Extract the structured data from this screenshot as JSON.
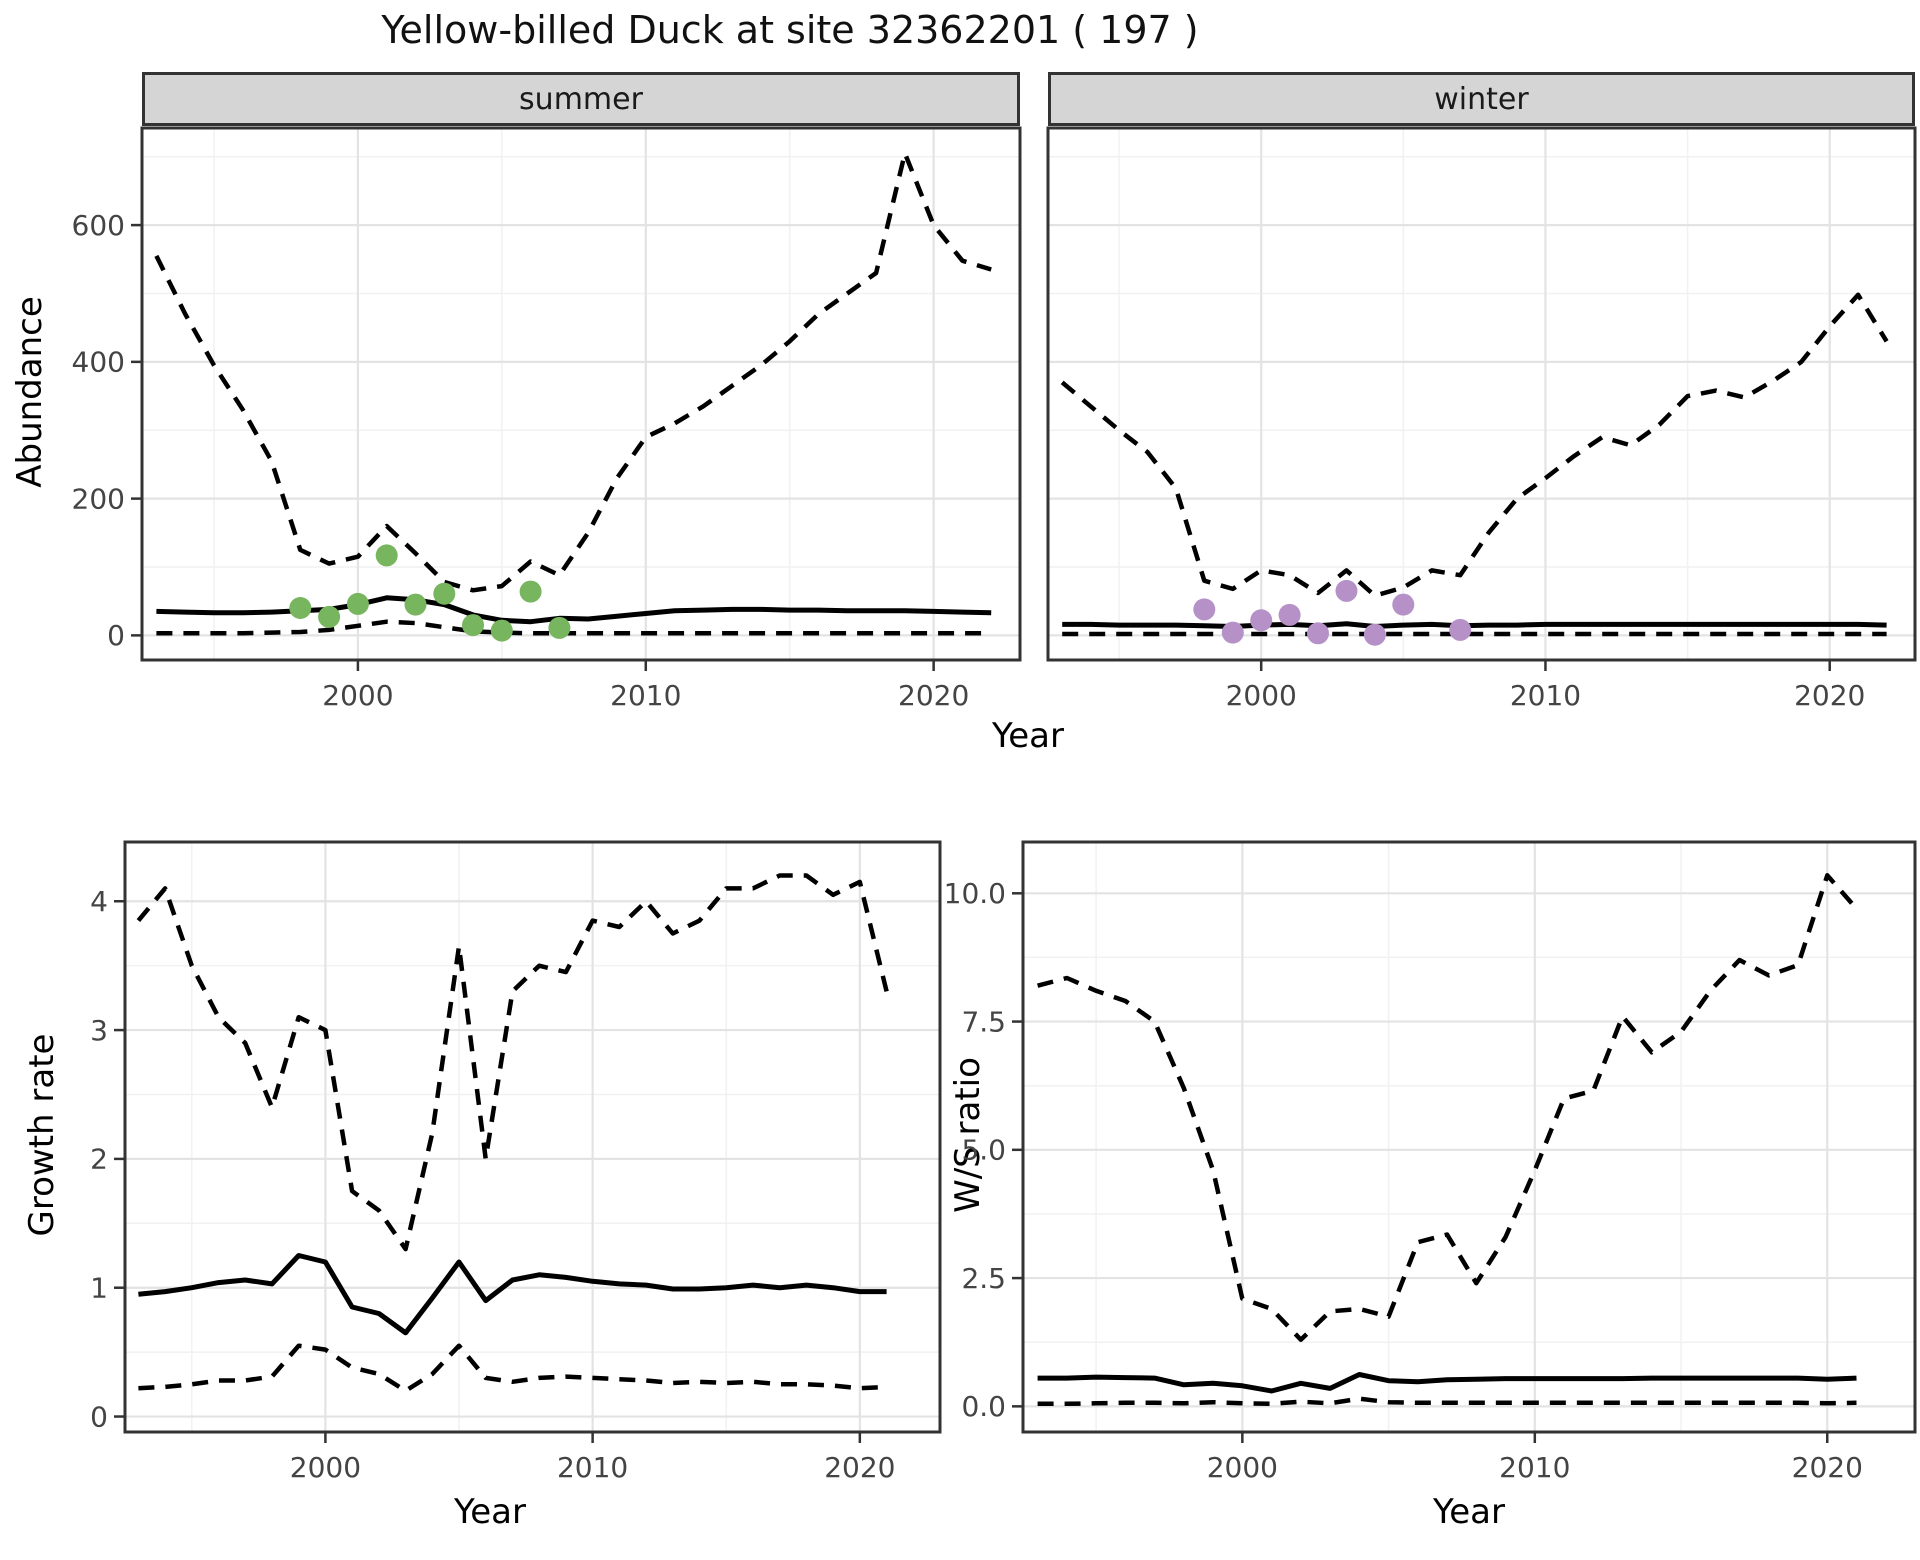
{
  "title": "Yellow-billed Duck at site 32362201 ( 197 )",
  "colors": {
    "line": "#000000",
    "summer_point": "#77b55e",
    "winter_point": "#b591c7",
    "strip_background": "#d5d5d5",
    "panel_border": "#333333",
    "grid_major": "#e3e3e3",
    "grid_minor": "#f1f1f1",
    "tick_text": "#444444"
  },
  "chart_data": [
    {
      "type": "line",
      "facet_label": "summer",
      "xlabel": "Year",
      "ylabel": "Abundance",
      "xlim": [
        1992.5,
        2023
      ],
      "ylim": [
        0,
        740
      ],
      "xticks": {
        "values": [
          2000,
          2010,
          2020
        ],
        "labels": [
          "2000",
          "2010",
          "2020"
        ]
      },
      "yticks": {
        "values": [
          0,
          200,
          400,
          600
        ],
        "labels": [
          "0",
          "200",
          "400",
          "600"
        ]
      },
      "x": [
        1993,
        1994,
        1995,
        1996,
        1997,
        1998,
        1999,
        2000,
        2001,
        2002,
        2003,
        2004,
        2005,
        2006,
        2007,
        2008,
        2009,
        2010,
        2011,
        2012,
        2013,
        2014,
        2015,
        2016,
        2017,
        2018,
        2019,
        2020,
        2021,
        2022
      ],
      "series": [
        {
          "name": "upper_95ci",
          "linetype": "dashed",
          "y": [
            555,
            470,
            395,
            330,
            255,
            125,
            105,
            115,
            160,
            120,
            78,
            66,
            72,
            108,
            88,
            150,
            230,
            290,
            310,
            335,
            365,
            395,
            430,
            470,
            500,
            530,
            705,
            600,
            548,
            535
          ]
        },
        {
          "name": "median",
          "linetype": "solid",
          "y": [
            35,
            34,
            33,
            33,
            34,
            36,
            38,
            45,
            55,
            52,
            45,
            30,
            22,
            20,
            25,
            24,
            28,
            32,
            36,
            37,
            38,
            38,
            37,
            37,
            36,
            36,
            36,
            35,
            34,
            33
          ]
        },
        {
          "name": "lower_95ci",
          "linetype": "dashed",
          "y": [
            3,
            3,
            3,
            3,
            4,
            5,
            8,
            14,
            20,
            18,
            12,
            6,
            4,
            3,
            3,
            3,
            3,
            3,
            3,
            3,
            3,
            3,
            3,
            3,
            3,
            3,
            3,
            3,
            3,
            3
          ]
        }
      ],
      "points": {
        "name": "observed_counts",
        "color": "#77b55e",
        "x": [
          1998,
          1999,
          2000,
          2001,
          2002,
          2003,
          2004,
          2005,
          2006,
          2007
        ],
        "y": [
          40,
          27,
          46,
          117,
          45,
          61,
          15,
          7,
          64,
          11
        ]
      }
    },
    {
      "type": "line",
      "facet_label": "winter",
      "xlabel": "Year",
      "ylabel": "Abundance",
      "xlim": [
        1992.5,
        2023
      ],
      "ylim": [
        0,
        740
      ],
      "xticks": {
        "values": [
          2000,
          2010,
          2020
        ],
        "labels": [
          "2000",
          "2010",
          "2020"
        ]
      },
      "yticks": {
        "values": [
          0,
          200,
          400,
          600
        ],
        "labels": [
          "0",
          "200",
          "400",
          "600"
        ]
      },
      "x": [
        1993,
        1994,
        1995,
        1996,
        1997,
        1998,
        1999,
        2000,
        2001,
        2002,
        2003,
        2004,
        2005,
        2006,
        2007,
        2008,
        2009,
        2010,
        2011,
        2012,
        2013,
        2014,
        2015,
        2016,
        2017,
        2018,
        2019,
        2020,
        2021,
        2022
      ],
      "series": [
        {
          "name": "upper_95ci",
          "linetype": "dashed",
          "y": [
            370,
            335,
            300,
            268,
            215,
            80,
            68,
            95,
            88,
            62,
            95,
            58,
            70,
            95,
            88,
            150,
            200,
            230,
            262,
            290,
            278,
            308,
            350,
            358,
            348,
            372,
            400,
            452,
            498,
            430
          ]
        },
        {
          "name": "median",
          "linetype": "solid",
          "y": [
            16,
            16,
            15,
            15,
            15,
            14,
            13,
            15,
            16,
            14,
            17,
            13,
            15,
            16,
            14,
            15,
            15,
            16,
            16,
            16,
            16,
            16,
            16,
            16,
            16,
            16,
            16,
            16,
            16,
            15
          ]
        },
        {
          "name": "lower_95ci",
          "linetype": "dashed",
          "y": [
            2,
            2,
            2,
            2,
            2,
            2,
            2,
            2,
            2,
            2,
            2,
            2,
            2,
            2,
            2,
            2,
            2,
            2,
            2,
            2,
            2,
            2,
            2,
            2,
            2,
            2,
            2,
            2,
            2,
            2
          ]
        }
      ],
      "points": {
        "name": "observed_counts",
        "color": "#b591c7",
        "x": [
          1998,
          1999,
          2000,
          2001,
          2002,
          2003,
          2004,
          2005,
          2007
        ],
        "y": [
          38,
          4,
          22,
          30,
          3,
          65,
          1,
          45,
          8
        ]
      }
    },
    {
      "type": "line",
      "facet_label": "",
      "xlabel": "Year",
      "ylabel": "Growth rate",
      "xlim": [
        1992.5,
        2023
      ],
      "ylim": [
        0,
        4.4
      ],
      "xticks": {
        "values": [
          2000,
          2010,
          2020
        ],
        "labels": [
          "2000",
          "2010",
          "2020"
        ]
      },
      "yticks": {
        "values": [
          0,
          1,
          2,
          3,
          4
        ],
        "labels": [
          "0",
          "1",
          "2",
          "3",
          "4"
        ]
      },
      "x": [
        1993,
        1994,
        1995,
        1996,
        1997,
        1998,
        1999,
        2000,
        2001,
        2002,
        2003,
        2004,
        2005,
        2006,
        2007,
        2008,
        2009,
        2010,
        2011,
        2012,
        2013,
        2014,
        2015,
        2016,
        2017,
        2018,
        2019,
        2020,
        2021
      ],
      "series": [
        {
          "name": "upper_95ci",
          "linetype": "dashed",
          "y": [
            3.85,
            4.1,
            3.5,
            3.1,
            2.9,
            2.4,
            3.1,
            3.0,
            1.75,
            1.6,
            1.3,
            2.2,
            3.65,
            2.0,
            3.3,
            3.5,
            3.45,
            3.85,
            3.8,
            4.0,
            3.75,
            3.85,
            4.1,
            4.1,
            4.2,
            4.2,
            4.05,
            4.15,
            3.3
          ]
        },
        {
          "name": "median",
          "linetype": "solid",
          "y": [
            0.95,
            0.97,
            1.0,
            1.04,
            1.06,
            1.03,
            1.25,
            1.2,
            0.85,
            0.8,
            0.65,
            0.92,
            1.2,
            0.9,
            1.06,
            1.1,
            1.08,
            1.05,
            1.03,
            1.02,
            0.99,
            0.99,
            1.0,
            1.02,
            1.0,
            1.02,
            1.0,
            0.97,
            0.97
          ]
        },
        {
          "name": "lower_95ci",
          "linetype": "dashed",
          "y": [
            0.22,
            0.23,
            0.25,
            0.28,
            0.28,
            0.31,
            0.55,
            0.52,
            0.38,
            0.33,
            0.2,
            0.33,
            0.55,
            0.3,
            0.27,
            0.3,
            0.31,
            0.3,
            0.29,
            0.28,
            0.26,
            0.27,
            0.26,
            0.27,
            0.25,
            0.25,
            0.24,
            0.22,
            0.23
          ]
        }
      ],
      "points": null
    },
    {
      "type": "line",
      "facet_label": "",
      "xlabel": "Year",
      "ylabel": "W/S ratio",
      "xlim": [
        1992.5,
        2023
      ],
      "ylim": [
        0,
        10.9
      ],
      "xticks": {
        "values": [
          2000,
          2010,
          2020
        ],
        "labels": [
          "2000",
          "2010",
          "2020"
        ]
      },
      "yticks": {
        "values": [
          0,
          2.5,
          5,
          7.5,
          10
        ],
        "labels": [
          "0.0",
          "2.5",
          "5.0",
          "7.5",
          "10.0"
        ]
      },
      "x": [
        1993,
        1994,
        1995,
        1996,
        1997,
        1998,
        1999,
        2000,
        2001,
        2002,
        2003,
        2004,
        2005,
        2006,
        2007,
        2008,
        2009,
        2010,
        2011,
        2012,
        2013,
        2014,
        2015,
        2016,
        2017,
        2018,
        2019,
        2020,
        2021
      ],
      "series": [
        {
          "name": "upper_95ci",
          "linetype": "dashed",
          "y": [
            8.2,
            8.35,
            8.1,
            7.9,
            7.5,
            6.2,
            4.6,
            2.1,
            1.9,
            1.3,
            1.85,
            1.9,
            1.75,
            3.2,
            3.35,
            2.4,
            3.3,
            4.6,
            6.0,
            6.15,
            7.6,
            6.9,
            7.3,
            8.1,
            8.7,
            8.4,
            8.6,
            10.35,
            9.7
          ]
        },
        {
          "name": "median",
          "linetype": "solid",
          "y": [
            0.55,
            0.55,
            0.57,
            0.56,
            0.55,
            0.42,
            0.45,
            0.4,
            0.3,
            0.45,
            0.35,
            0.62,
            0.5,
            0.48,
            0.52,
            0.53,
            0.54,
            0.54,
            0.54,
            0.54,
            0.54,
            0.55,
            0.55,
            0.55,
            0.55,
            0.55,
            0.55,
            0.53,
            0.55
          ]
        },
        {
          "name": "lower_95ci",
          "linetype": "dashed",
          "y": [
            0.05,
            0.05,
            0.06,
            0.07,
            0.07,
            0.06,
            0.08,
            0.06,
            0.05,
            0.09,
            0.06,
            0.15,
            0.08,
            0.07,
            0.07,
            0.07,
            0.07,
            0.07,
            0.07,
            0.07,
            0.07,
            0.07,
            0.07,
            0.07,
            0.07,
            0.07,
            0.07,
            0.06,
            0.07
          ]
        }
      ],
      "points": null
    }
  ]
}
